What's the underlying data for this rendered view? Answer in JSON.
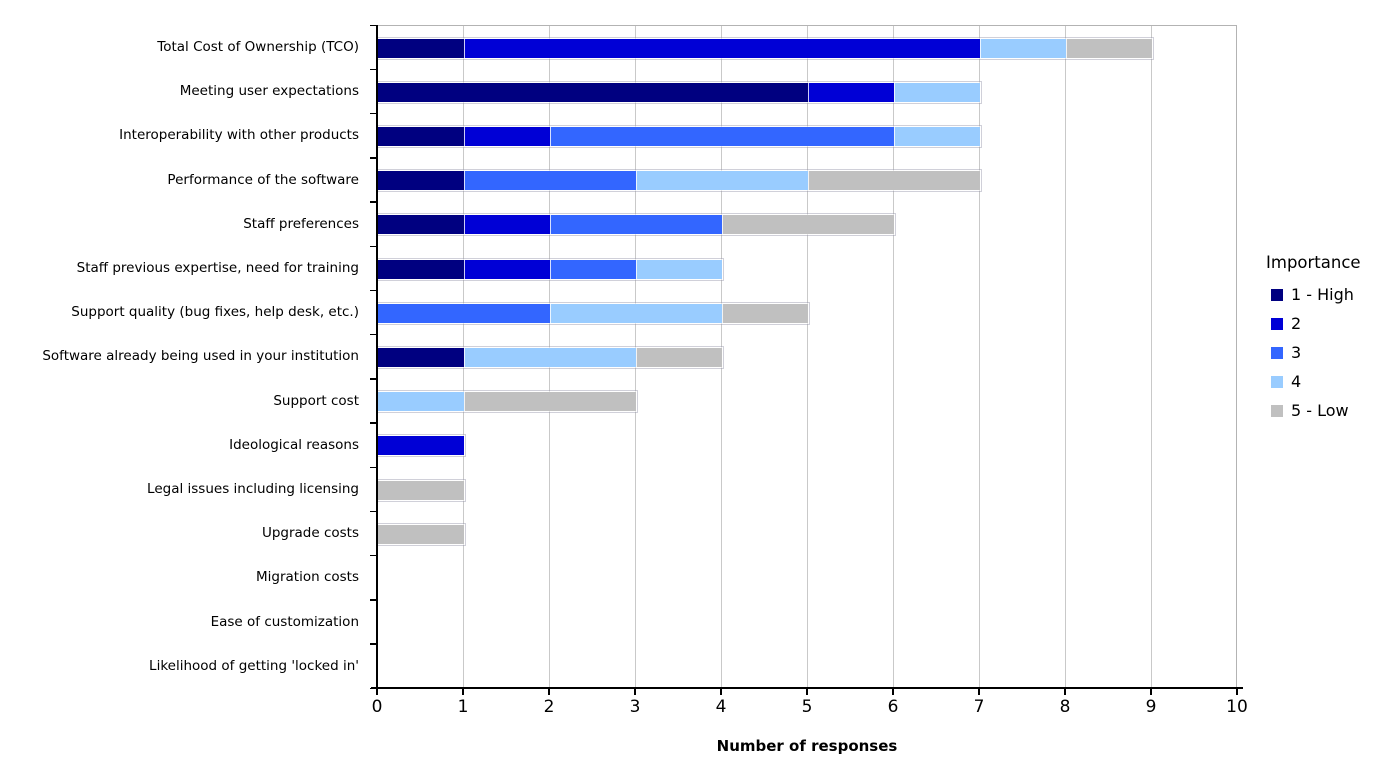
{
  "chart_data": {
    "type": "bar",
    "variant": "horizontal-stacked",
    "xlabel": "Number of responses",
    "xlim": [
      0,
      10
    ],
    "x_ticks": [
      "0",
      "1",
      "2",
      "3",
      "4",
      "5",
      "6",
      "7",
      "8",
      "9",
      "10"
    ],
    "grid": "vertical-on",
    "legend_title": "Importance",
    "legend_position": "right",
    "categories": [
      "Total Cost of Ownership (TCO)",
      "Meeting user expectations",
      "Interoperability with other products",
      "Performance of the software",
      "Staff preferences",
      "Staff previous expertise, need for training",
      "Support quality (bug fixes, help desk, etc.)",
      "Software already being used in your institution",
      "Support cost",
      "Ideological reasons",
      "Legal issues including licensing",
      "Upgrade costs",
      "Migration costs",
      "Ease of customization",
      "Likelihood of getting 'locked in'"
    ],
    "series": [
      {
        "name": "1 - High",
        "color": "#000080",
        "values": [
          1,
          5,
          1,
          1,
          1,
          1,
          0,
          1,
          0,
          0,
          0,
          0,
          0,
          0,
          0
        ]
      },
      {
        "name": "2",
        "color": "#0000D6",
        "values": [
          6,
          1,
          1,
          0,
          1,
          1,
          0,
          0,
          0,
          1,
          0,
          0,
          0,
          0,
          0
        ]
      },
      {
        "name": "3",
        "color": "#3366FF",
        "values": [
          0,
          0,
          4,
          2,
          2,
          1,
          2,
          0,
          0,
          0,
          0,
          0,
          0,
          0,
          0
        ]
      },
      {
        "name": "4",
        "color": "#99CCFF",
        "values": [
          1,
          1,
          1,
          2,
          0,
          1,
          2,
          2,
          1,
          0,
          0,
          0,
          0,
          0,
          0
        ]
      },
      {
        "name": "5 - Low",
        "color": "#C0C0C0",
        "values": [
          1,
          0,
          0,
          2,
          2,
          0,
          1,
          1,
          2,
          0,
          1,
          1,
          0,
          0,
          0
        ]
      }
    ],
    "colors": {
      "gridline": "#C9C9C9",
      "plot_border": "#B3B3B3",
      "axis": "#000000",
      "background": "#FFFFFF"
    }
  }
}
